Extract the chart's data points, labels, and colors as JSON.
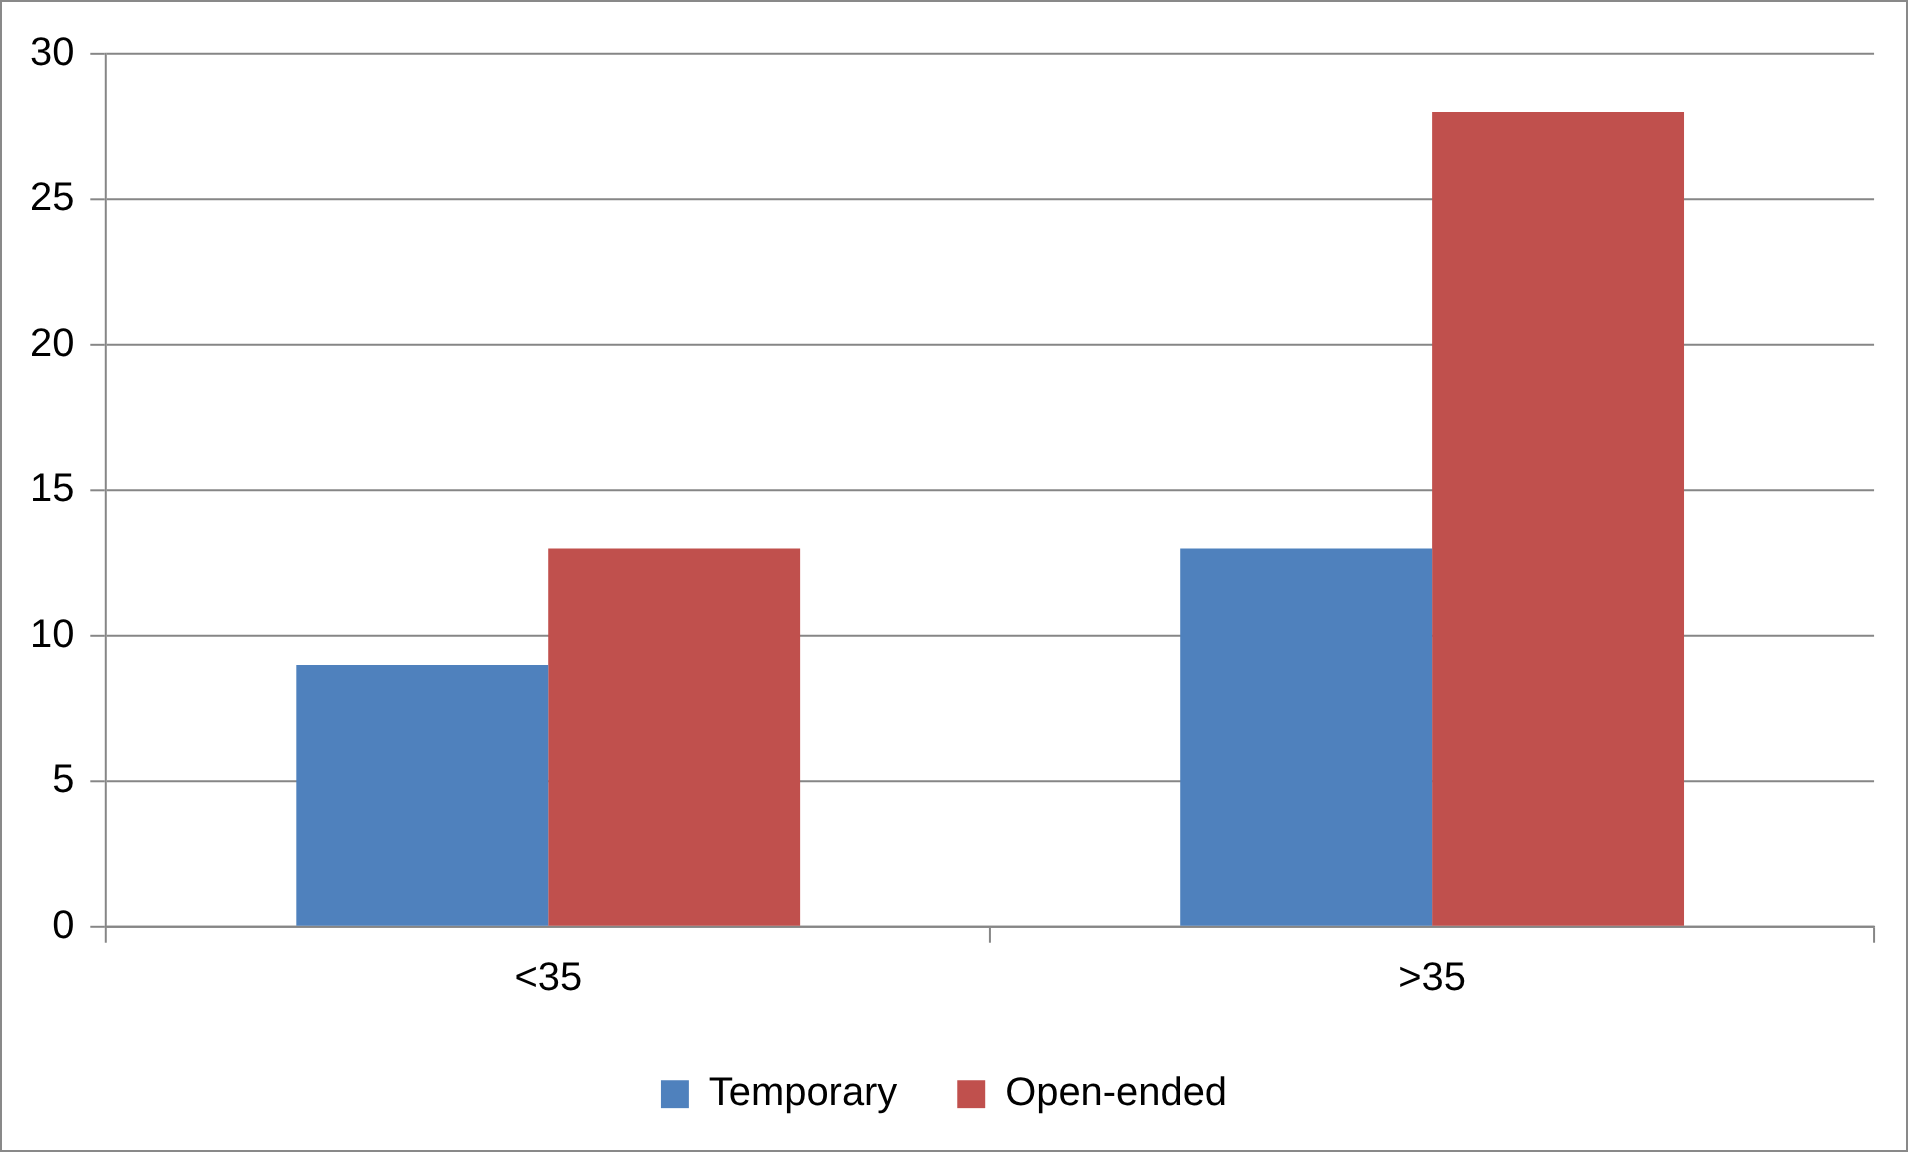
{
  "chart_data": {
    "type": "bar",
    "categories": [
      "<35",
      ">35"
    ],
    "series": [
      {
        "name": "Temporary",
        "color": "#4f81bd",
        "values": [
          9,
          13
        ]
      },
      {
        "name": "Open-ended",
        "color": "#c0504d",
        "values": [
          13,
          28
        ]
      }
    ],
    "ylim": [
      0,
      30
    ],
    "yticks": [
      0,
      5,
      10,
      15,
      20,
      25,
      30
    ],
    "grid": "y",
    "legend": "bottom"
  }
}
